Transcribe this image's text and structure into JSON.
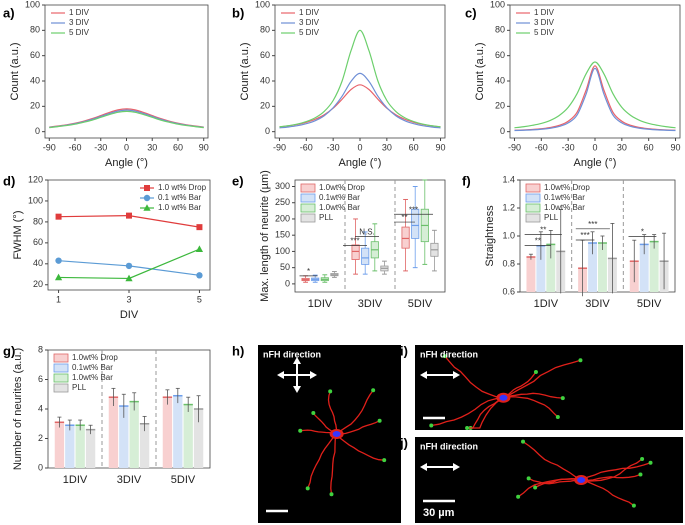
{
  "chart_data": [
    {
      "type": "line",
      "panel_label": "a)",
      "x_label": "Angle (°)",
      "y_label": "Count (a.u.)",
      "legend": "upper left",
      "x": [
        -90,
        -80,
        -70,
        -60,
        -50,
        -40,
        -30,
        -20,
        -10,
        0,
        10,
        20,
        30,
        40,
        50,
        60,
        70,
        80,
        90
      ],
      "xlim": [
        -95,
        95
      ],
      "xticks": [
        -90,
        -60,
        -30,
        0,
        30,
        60,
        90
      ],
      "ylim": [
        -5,
        100
      ],
      "yticks": [
        0,
        20,
        40,
        60,
        80,
        100
      ],
      "series": [
        {
          "name": "1 DIV",
          "color": "#e8636b",
          "values": [
            3.6,
            4.5,
            5.4,
            6.7,
            8.3,
            10.3,
            12.7,
            15.2,
            17.2,
            18,
            17.2,
            15.2,
            12.7,
            10.3,
            8.3,
            6.7,
            5.4,
            4.5,
            3.6
          ]
        },
        {
          "name": "3 DIV",
          "color": "#6f8fd6",
          "values": [
            3.4,
            4.2,
            5.1,
            6.3,
            7.8,
            9.7,
            12.0,
            14.3,
            16.2,
            17,
            16.2,
            14.3,
            12.0,
            9.7,
            7.8,
            6.3,
            5.1,
            4.2,
            3.4
          ]
        },
        {
          "name": "5 DIV",
          "color": "#6ccf6c",
          "values": [
            3.2,
            4.0,
            4.8,
            5.9,
            7.4,
            9.1,
            11.3,
            13.5,
            15.3,
            16,
            15.3,
            13.5,
            11.3,
            9.1,
            7.4,
            5.9,
            4.8,
            4.0,
            3.2
          ]
        }
      ]
    },
    {
      "type": "line",
      "panel_label": "b)",
      "x_label": "Angle (°)",
      "y_label": "Count (a.u.)",
      "legend": "upper left",
      "x": [
        -90,
        -80,
        -70,
        -60,
        -50,
        -40,
        -30,
        -20,
        -10,
        0,
        10,
        20,
        30,
        40,
        50,
        60,
        70,
        80,
        90
      ],
      "xlim": [
        -95,
        95
      ],
      "xticks": [
        -90,
        -60,
        -30,
        0,
        30,
        60,
        90
      ],
      "ylim": [
        -5,
        100
      ],
      "yticks": [
        0,
        20,
        40,
        60,
        80,
        100
      ],
      "series": [
        {
          "name": "1 DIV",
          "color": "#e8636b",
          "values": [
            3.7,
            4.6,
            5.7,
            7.4,
            9.8,
            13.3,
            18.5,
            25.6,
            33.3,
            37,
            33.3,
            25.6,
            18.5,
            13.3,
            9.8,
            7.4,
            5.7,
            4.6,
            3.7
          ]
        },
        {
          "name": "3 DIV",
          "color": "#6f8fd6",
          "values": [
            3.0,
            3.7,
            4.7,
            6.3,
            8.7,
            12.6,
            18.9,
            28.0,
            39.7,
            46,
            39.7,
            28.0,
            18.9,
            12.6,
            8.7,
            6.3,
            4.7,
            3.7,
            3.0
          ]
        },
        {
          "name": "5 DIV",
          "color": "#6ccf6c",
          "values": [
            3.8,
            4.7,
            6,
            8,
            11,
            16,
            24.6,
            40,
            64,
            80,
            64,
            40,
            24.6,
            16,
            11,
            8,
            6,
            4.7,
            3.8
          ]
        }
      ]
    },
    {
      "type": "line",
      "panel_label": "c)",
      "x_label": "Angle (°)",
      "y_label": "Count (a.u.)",
      "legend": "upper left",
      "x": [
        -90,
        -80,
        -70,
        -60,
        -50,
        -40,
        -30,
        -20,
        -10,
        0,
        10,
        20,
        30,
        40,
        50,
        60,
        70,
        80,
        90
      ],
      "xlim": [
        -95,
        95
      ],
      "xticks": [
        -90,
        -60,
        -30,
        0,
        30,
        60,
        90
      ],
      "ylim": [
        -5,
        100
      ],
      "yticks": [
        0,
        20,
        40,
        60,
        80,
        100
      ],
      "series": [
        {
          "name": "1 DIV",
          "color": "#e8636b",
          "values": [
            1.1,
            1.3,
            1.7,
            2.3,
            3.3,
            5.0,
            8.2,
            15.4,
            32.7,
            52,
            32.7,
            15.4,
            8.2,
            5.0,
            3.3,
            2.3,
            1.7,
            1.3,
            1.1
          ]
        },
        {
          "name": "3 DIV",
          "color": "#6f8fd6",
          "values": [
            0.9,
            1.1,
            1.4,
            1.9,
            2.7,
            4.1,
            6.9,
            13.2,
            29.6,
            50,
            29.6,
            13.2,
            6.9,
            4.1,
            2.7,
            1.9,
            1.4,
            1.1,
            0.9
          ]
        },
        {
          "name": "5 DIV",
          "color": "#6ccf6c",
          "values": [
            3.1,
            3.9,
            5.0,
            6.5,
            8.9,
            12.8,
            19.2,
            30.1,
            45.6,
            55,
            45.6,
            30.1,
            19.2,
            12.8,
            8.9,
            6.5,
            5.0,
            3.9,
            3.1
          ]
        }
      ]
    },
    {
      "type": "line",
      "panel_label": "d)",
      "x_label": "DIV",
      "y_label": "FWHM (°)",
      "legend": "upper right",
      "x": [
        1,
        3,
        5
      ],
      "xlim": [
        0.7,
        5.3
      ],
      "xticks": [
        1,
        3,
        5
      ],
      "ylim": [
        15,
        120
      ],
      "yticks": [
        20,
        40,
        60,
        80,
        100,
        120
      ],
      "series": [
        {
          "name": "1.0 wt% Drop",
          "color": "#e03c3c",
          "marker": "square",
          "values": [
            85,
            86,
            75
          ]
        },
        {
          "name": "0.1 wt% Bar",
          "color": "#5b9bd5",
          "marker": "circle",
          "values": [
            43,
            38,
            29
          ]
        },
        {
          "name": "1.0 wt% Bar",
          "color": "#3cb83c",
          "marker": "triangle",
          "values": [
            27,
            26,
            54
          ]
        }
      ]
    },
    {
      "type": "box",
      "panel_label": "e)",
      "y_label": "Max. length of neurite (µm)",
      "legend": "upper left",
      "separators": true,
      "categories": [
        "1DIV",
        "3DIV",
        "5DIV"
      ],
      "ylim": [
        -25,
        320
      ],
      "yticks": [
        0,
        50,
        100,
        150,
        200,
        250,
        300
      ],
      "annotations": [
        "*",
        "***",
        "N.S.",
        "**",
        "***"
      ],
      "series": [
        {
          "name": "1.0wt% Drop",
          "color": "#e06666",
          "fill": "#f8d0d0",
          "boxes": [
            [
              5,
              10,
              13,
              17,
              25
            ],
            [
              30,
              75,
              100,
              120,
              200
            ],
            [
              40,
              110,
              140,
              175,
              260
            ]
          ]
        },
        {
          "name": "0.1wt% Bar",
          "color": "#6d9eeb",
          "fill": "#d3e2f7",
          "boxes": [
            [
              5,
              10,
              14,
              18,
              27
            ],
            [
              30,
              60,
              80,
              110,
              160
            ],
            [
              50,
              140,
              180,
              230,
              300
            ]
          ]
        },
        {
          "name": "1.0wt% Bar",
          "color": "#6abf6a",
          "fill": "#d6eed6",
          "boxes": [
            [
              5,
              10,
              14,
              19,
              28
            ],
            [
              40,
              80,
              105,
              130,
              185
            ],
            [
              60,
              130,
              180,
              230,
              320
            ]
          ]
        },
        {
          "name": "PLL",
          "color": "#999999",
          "fill": "#e3e3e3",
          "boxes": [
            [
              20,
              25,
              28,
              32,
              38
            ],
            [
              30,
              40,
              48,
              55,
              70
            ],
            [
              40,
              85,
              105,
              125,
              165
            ]
          ]
        }
      ]
    },
    {
      "type": "bar",
      "panel_label": "f)",
      "y_label": "Straightness",
      "legend": "upper left",
      "separators": true,
      "categories": [
        "1DIV",
        "3DIV",
        "5DIV"
      ],
      "ylim": [
        0.6,
        1.4
      ],
      "yticks": [
        0.6,
        0.8,
        {
          "value": 1,
          "label": "1.0"
        },
        1.2,
        1.4
      ],
      "annotations": [
        "**",
        "**",
        "***",
        "***",
        "*"
      ],
      "series": [
        {
          "name": "1.0wt% Drop",
          "color": "#e06666",
          "fill": "#f8d0d0",
          "values": [
            0.85,
            0.77,
            0.82
          ],
          "errors": [
            0.02,
            0.2,
            0.15
          ]
        },
        {
          "name": "0.1wt% Bar",
          "color": "#6d9eeb",
          "fill": "#d3e2f7",
          "values": [
            0.93,
            0.95,
            0.94
          ],
          "errors": [
            0.1,
            0.08,
            0.07
          ]
        },
        {
          "name": "1.0wt% Bar",
          "color": "#6abf6a",
          "fill": "#d6eed6",
          "values": [
            0.94,
            0.95,
            0.96
          ],
          "errors": [
            0.1,
            0.05,
            0.05
          ]
        },
        {
          "name": "PLL",
          "color": "#999999",
          "fill": "#e3e3e3",
          "values": [
            0.89,
            0.84,
            0.82
          ],
          "errors": [
            0.3,
            0.25,
            0.2
          ]
        }
      ]
    },
    {
      "type": "bar",
      "panel_label": "g)",
      "y_label": "Number of neurites (a.u.)",
      "legend": "upper left",
      "separators": true,
      "categories": [
        "1DIV",
        "3DIV",
        "5DIV"
      ],
      "ylim": [
        0,
        8
      ],
      "yticks": [
        0,
        2,
        4,
        6,
        8
      ],
      "series": [
        {
          "name": "1.0wt% Drop",
          "color": "#e06666",
          "fill": "#f8d0d0",
          "values": [
            3.1,
            4.8,
            4.8
          ],
          "errors": [
            0.35,
            0.6,
            0.5
          ]
        },
        {
          "name": "0.1wt% Bar",
          "color": "#6d9eeb",
          "fill": "#d3e2f7",
          "values": [
            2.9,
            4.2,
            4.9
          ],
          "errors": [
            0.35,
            0.8,
            0.5
          ]
        },
        {
          "name": "1.0wt% Bar",
          "color": "#6abf6a",
          "fill": "#d6eed6",
          "values": [
            2.9,
            4.5,
            4.3
          ],
          "errors": [
            0.35,
            0.6,
            0.5
          ]
        },
        {
          "name": "PLL",
          "color": "#999999",
          "fill": "#e3e3e3",
          "values": [
            2.6,
            3.0,
            4.0
          ],
          "errors": [
            0.3,
            0.5,
            0.9
          ]
        }
      ]
    }
  ],
  "images": [
    {
      "label": "h)",
      "text": "nFH direction"
    },
    {
      "label": "i)",
      "text": "nFH direction"
    },
    {
      "label": "j)",
      "text": "nFH direction",
      "scale": "30 µm"
    }
  ]
}
